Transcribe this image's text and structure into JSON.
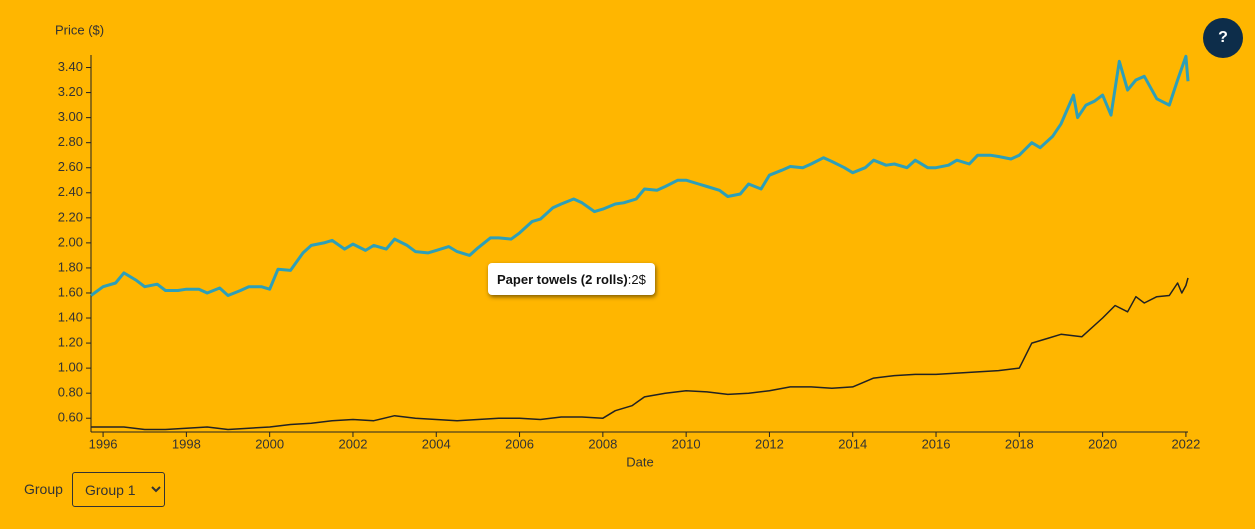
{
  "chart_data": {
    "type": "line",
    "y_label": "Price ($)",
    "x_label": "Date",
    "xlim": [
      1995.71,
      2022.05
    ],
    "ylim": [
      0.49,
      3.5
    ],
    "xticks": [
      1996,
      1998,
      2000,
      2002,
      2004,
      2006,
      2008,
      2010,
      2012,
      2014,
      2016,
      2018,
      2020,
      2022
    ],
    "yticks": [
      {
        "value": 0.6,
        "label": "0.60"
      },
      {
        "value": 0.8,
        "label": "0.80"
      },
      {
        "value": 1.0,
        "label": "1.00"
      },
      {
        "value": 1.2,
        "label": "1.20"
      },
      {
        "value": 1.4,
        "label": "1.40"
      },
      {
        "value": 1.6,
        "label": "1.60"
      },
      {
        "value": 1.8,
        "label": "1.80"
      },
      {
        "value": 2.0,
        "label": "2.00"
      },
      {
        "value": 2.2,
        "label": "2.20"
      },
      {
        "value": 2.4,
        "label": "2.40"
      },
      {
        "value": 2.6,
        "label": "2.60"
      },
      {
        "value": 2.8,
        "label": "2.80"
      },
      {
        "value": 3.0,
        "label": "3.00"
      },
      {
        "value": 3.2,
        "label": "3.20"
      },
      {
        "value": 3.4,
        "label": "3.40"
      }
    ],
    "series": [
      {
        "color": "#2e9fb8",
        "width": 3,
        "x": [
          1995.71,
          1996.0,
          1996.3,
          1996.5,
          1996.8,
          1997.0,
          1997.3,
          1997.5,
          1997.8,
          1998.0,
          1998.3,
          1998.5,
          1998.8,
          1999.0,
          1999.3,
          1999.5,
          1999.8,
          2000.0,
          2000.2,
          2000.5,
          2000.8,
          2001.0,
          2001.3,
          2001.5,
          2001.8,
          2002.0,
          2002.3,
          2002.5,
          2002.8,
          2003.0,
          2003.3,
          2003.5,
          2003.8,
          2004.0,
          2004.3,
          2004.5,
          2004.8,
          2005.0,
          2005.3,
          2005.5,
          2005.8,
          2006.0,
          2006.3,
          2006.5,
          2006.8,
          2007.0,
          2007.3,
          2007.5,
          2007.8,
          2008.0,
          2008.3,
          2008.5,
          2008.8,
          2009.0,
          2009.3,
          2009.5,
          2009.8,
          2010.0,
          2010.3,
          2010.5,
          2010.8,
          2011.0,
          2011.3,
          2011.5,
          2011.8,
          2012.0,
          2012.3,
          2012.5,
          2012.8,
          2013.0,
          2013.3,
          2013.5,
          2013.8,
          2014.0,
          2014.3,
          2014.5,
          2014.8,
          2015.0,
          2015.3,
          2015.5,
          2015.8,
          2016.0,
          2016.3,
          2016.5,
          2016.8,
          2017.0,
          2017.3,
          2017.5,
          2017.8,
          2018.0,
          2018.3,
          2018.5,
          2018.8,
          2019.0,
          2019.3,
          2019.4,
          2019.6,
          2019.8,
          2020.0,
          2020.2,
          2020.4,
          2020.6,
          2020.8,
          2021.0,
          2021.3,
          2021.6,
          2021.8,
          2022.0,
          2022.05
        ],
        "values": [
          1.58,
          1.65,
          1.68,
          1.76,
          1.7,
          1.65,
          1.67,
          1.62,
          1.62,
          1.63,
          1.63,
          1.6,
          1.64,
          1.58,
          1.62,
          1.65,
          1.65,
          1.63,
          1.79,
          1.78,
          1.92,
          1.98,
          2.0,
          2.02,
          1.95,
          1.99,
          1.94,
          1.98,
          1.95,
          2.03,
          1.98,
          1.93,
          1.92,
          1.94,
          1.97,
          1.93,
          1.9,
          1.96,
          2.04,
          2.04,
          2.03,
          2.08,
          2.17,
          2.19,
          2.28,
          2.31,
          2.35,
          2.32,
          2.25,
          2.27,
          2.31,
          2.32,
          2.35,
          2.43,
          2.42,
          2.45,
          2.5,
          2.5,
          2.47,
          2.45,
          2.42,
          2.37,
          2.39,
          2.47,
          2.43,
          2.54,
          2.58,
          2.61,
          2.6,
          2.63,
          2.68,
          2.65,
          2.6,
          2.56,
          2.6,
          2.66,
          2.62,
          2.63,
          2.6,
          2.66,
          2.6,
          2.6,
          2.62,
          2.66,
          2.63,
          2.7,
          2.7,
          2.69,
          2.67,
          2.7,
          2.8,
          2.76,
          2.85,
          2.95,
          3.18,
          3.0,
          3.1,
          3.13,
          3.18,
          3.02,
          3.45,
          3.22,
          3.3,
          3.33,
          3.15,
          3.1,
          3.3,
          3.49,
          3.29
        ]
      },
      {
        "color": "#222222",
        "width": 1.5,
        "x": [
          1995.71,
          1996.5,
          1997.0,
          1997.5,
          1998.0,
          1998.5,
          1999.0,
          1999.5,
          2000.0,
          2000.5,
          2001.0,
          2001.5,
          2002.0,
          2002.5,
          2003.0,
          2003.5,
          2004.0,
          2004.5,
          2005.0,
          2005.5,
          2006.0,
          2006.5,
          2007.0,
          2007.5,
          2008.0,
          2008.3,
          2008.7,
          2009.0,
          2009.5,
          2010.0,
          2010.5,
          2011.0,
          2011.5,
          2012.0,
          2012.5,
          2013.0,
          2013.5,
          2014.0,
          2014.5,
          2015.0,
          2015.5,
          2016.0,
          2016.5,
          2017.0,
          2017.5,
          2018.0,
          2018.3,
          2018.7,
          2019.0,
          2019.5,
          2020.0,
          2020.3,
          2020.6,
          2020.8,
          2021.0,
          2021.3,
          2021.6,
          2021.8,
          2021.9,
          2022.0,
          2022.05
        ],
        "values": [
          0.53,
          0.53,
          0.51,
          0.51,
          0.52,
          0.53,
          0.51,
          0.52,
          0.53,
          0.55,
          0.56,
          0.58,
          0.59,
          0.58,
          0.62,
          0.6,
          0.59,
          0.58,
          0.59,
          0.6,
          0.6,
          0.59,
          0.61,
          0.61,
          0.6,
          0.66,
          0.7,
          0.77,
          0.8,
          0.82,
          0.81,
          0.79,
          0.8,
          0.82,
          0.85,
          0.85,
          0.84,
          0.85,
          0.92,
          0.94,
          0.95,
          0.95,
          0.96,
          0.97,
          0.98,
          1.0,
          1.2,
          1.24,
          1.27,
          1.25,
          1.4,
          1.5,
          1.45,
          1.57,
          1.52,
          1.57,
          1.58,
          1.68,
          1.6,
          1.66,
          1.72
        ]
      }
    ],
    "tooltip": {
      "label": "Paper towels (2 rolls)",
      "text": ":2$"
    }
  },
  "controls": {
    "help": "?",
    "group_label": "Group",
    "group_value": "Group 1"
  }
}
